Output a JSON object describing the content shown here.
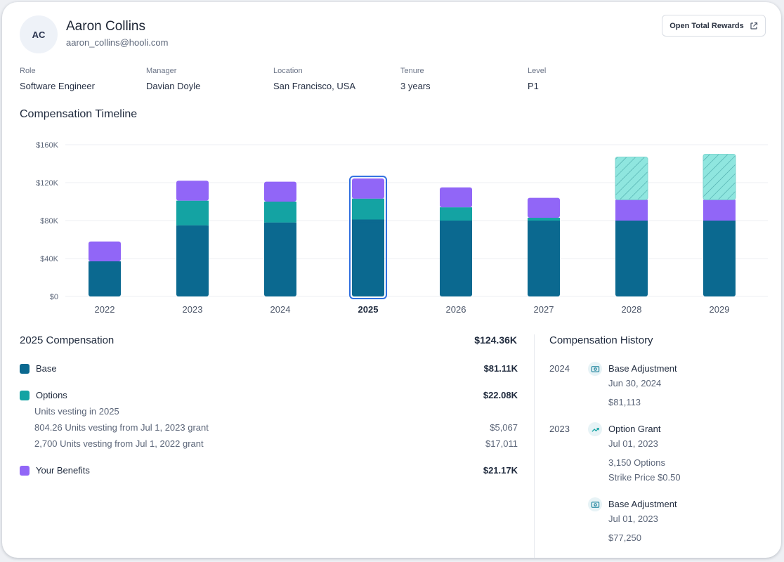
{
  "profile": {
    "initials": "AC",
    "name": "Aaron Collins",
    "email": "aaron_collins@hooli.com",
    "button_label": "Open Total Rewards"
  },
  "info": [
    {
      "label": "Role",
      "value": "Software Engineer"
    },
    {
      "label": "Manager",
      "value": "Davian Doyle"
    },
    {
      "label": "Location",
      "value": "San Francisco, USA"
    },
    {
      "label": "Tenure",
      "value": "3 years"
    },
    {
      "label": "Level",
      "value": "P1"
    }
  ],
  "timeline_title": "Compensation Timeline",
  "colors": {
    "base": "#0b6990",
    "options": "#14a3a3",
    "benefits": "#9166f7",
    "projected": "#8fe6df",
    "selected": "#2f6fe0"
  },
  "chart_data": {
    "type": "bar",
    "stacked": true,
    "categories": [
      "2022",
      "2023",
      "2024",
      "2025",
      "2026",
      "2027",
      "2028",
      "2029"
    ],
    "series": [
      {
        "key": "base",
        "values": [
          37,
          75,
          78,
          81.11,
          80,
          80,
          80,
          80
        ]
      },
      {
        "key": "options",
        "values": [
          0,
          26,
          22,
          22.08,
          14,
          3,
          0,
          0
        ]
      },
      {
        "key": "benefits",
        "values": [
          21,
          21,
          21,
          21.17,
          21,
          21,
          22,
          22
        ]
      },
      {
        "key": "projected",
        "values": [
          0,
          0,
          0,
          0,
          0,
          0,
          45,
          48
        ]
      }
    ],
    "y_ticks": [
      "$0",
      "$40K",
      "$80K",
      "$120K",
      "$160K"
    ],
    "ylim": [
      0,
      160
    ],
    "selected": "2025",
    "grid": true
  },
  "comp_breakdown": {
    "title": "2025 Compensation",
    "total": "$124.36K",
    "base": {
      "label": "Base",
      "amount": "$81.11K"
    },
    "options": {
      "label": "Options",
      "amount": "$22.08K"
    },
    "vesting_heading": "Units vesting in 2025",
    "vesting": [
      {
        "label": "804.26 Units vesting from Jul 1, 2023 grant",
        "amount": "$5,067"
      },
      {
        "label": "2,700 Units vesting from Jul 1, 2022 grant",
        "amount": "$17,011"
      }
    ],
    "benefits": {
      "label": "Your Benefits",
      "amount": "$21.17K"
    }
  },
  "history": {
    "title": "Compensation History",
    "entries": [
      {
        "year": "2024",
        "icon": "money-icon",
        "title": "Base Adjustment",
        "date": "Jun 30, 2024",
        "details": [
          "$81,113"
        ]
      },
      {
        "year": "2023",
        "icon": "trend-up-icon",
        "title": "Option Grant",
        "date": "Jul 01, 2023",
        "details": [
          "3,150 Options",
          "Strike Price $0.50"
        ]
      },
      {
        "year": "",
        "icon": "money-icon",
        "title": "Base Adjustment",
        "date": "Jul 01, 2023",
        "details": [
          "$77,250"
        ]
      }
    ]
  }
}
